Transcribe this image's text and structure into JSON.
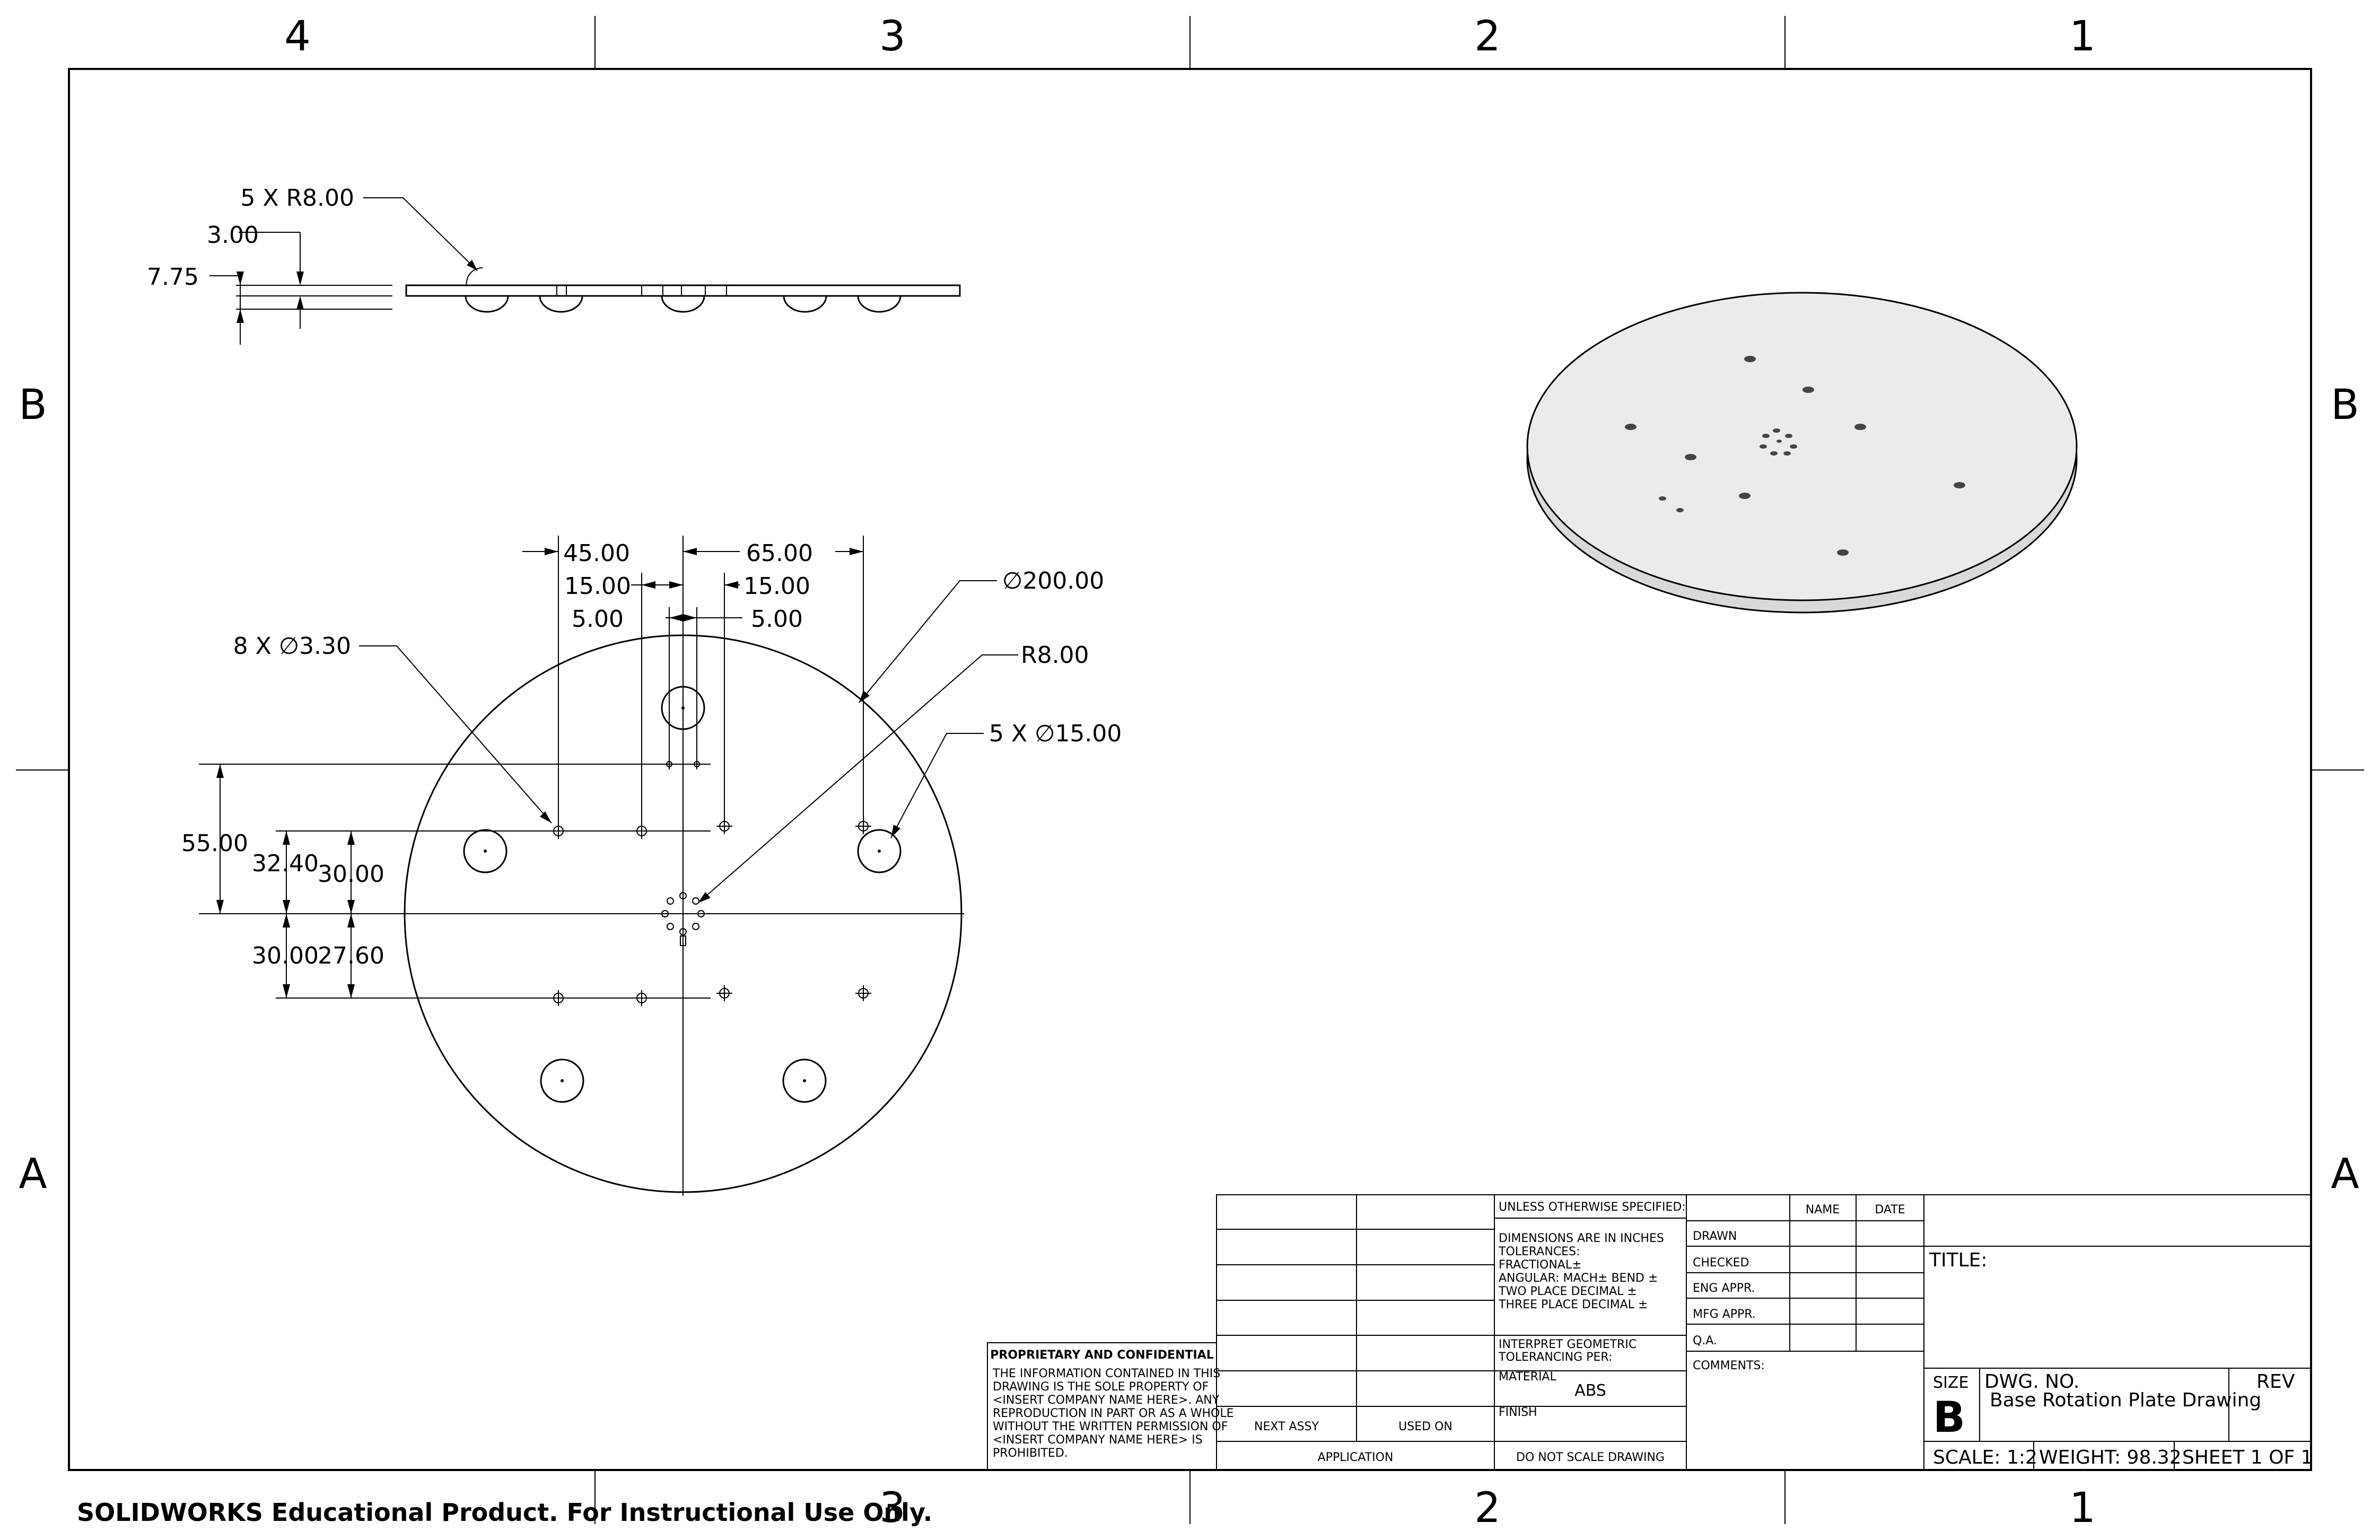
{
  "zones": {
    "columns": [
      "4",
      "3",
      "2",
      "1"
    ],
    "rows": [
      "B",
      "A"
    ]
  },
  "side_view": {
    "callout_r": "5 X R8.00",
    "dim_a": "3.00",
    "dim_b": "7.75"
  },
  "top_view": {
    "dim_45": "45.00",
    "dim_65": "65.00",
    "dim_15_left": "15.00",
    "dim_15_right": "15.00",
    "dim_5_left": "5.00",
    "dim_5_right": "5.00",
    "callout_holes": "8 X ∅3.30",
    "callout_dia": "∅200.00",
    "callout_r": "R8.00",
    "callout_big_holes": "5 X ∅15.00",
    "dim_55": "55.00",
    "dim_32_40": "32.40",
    "dim_30_upper": "30.00",
    "dim_30_lower": "30.00",
    "dim_27_60": "27.60"
  },
  "title_block": {
    "proprietary_title": "PROPRIETARY AND CONFIDENTIAL",
    "proprietary_lines": [
      "THE INFORMATION CONTAINED IN THIS",
      "DRAWING IS THE SOLE PROPERTY OF",
      "<INSERT COMPANY NAME HERE>.  ANY",
      "REPRODUCTION IN PART OR AS A WHOLE",
      "WITHOUT THE WRITTEN PERMISSION OF",
      "<INSERT COMPANY NAME HERE> IS",
      "PROHIBITED."
    ],
    "next_assy": "NEXT ASSY",
    "used_on": "USED ON",
    "application": "APPLICATION",
    "unless": "UNLESS OTHERWISE SPECIFIED:",
    "tolerance_lines": [
      "DIMENSIONS ARE IN INCHES",
      "TOLERANCES:",
      "FRACTIONAL±",
      "ANGULAR: MACH±     BEND  ±",
      "TWO PLACE DECIMAL     ±",
      "THREE PLACE DECIMAL   ±"
    ],
    "interpret": [
      "INTERPRET GEOMETRIC",
      "TOLERANCING PER:"
    ],
    "material_label": "MATERIAL",
    "material": "ABS",
    "finish_label": "FINISH",
    "do_not_scale": "DO NOT SCALE DRAWING",
    "name": "NAME",
    "date": "DATE",
    "drawn": "DRAWN",
    "checked": "CHECKED",
    "eng_appr": "ENG APPR.",
    "mfg_appr": "MFG APPR.",
    "qa": "Q.A.",
    "comments": "COMMENTS:",
    "title_label": "TITLE:",
    "size_label": "SIZE",
    "size": "B",
    "dwg_no_label": "DWG.  NO.",
    "dwg_no": "Base Rotation Plate Drawing",
    "rev_label": "REV",
    "scale": "SCALE: 1:2",
    "weight": "WEIGHT: 98.32",
    "sheet": "SHEET 1 OF 1"
  },
  "watermark": "SOLIDWORKS Educational Product. For Instructional Use Only."
}
